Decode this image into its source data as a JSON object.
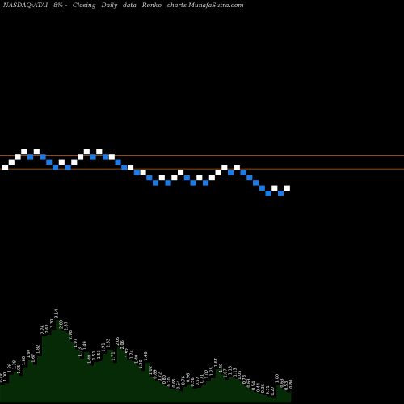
{
  "header": {
    "ticker": "NASDAQ:ATAI",
    "change": "8% -",
    "price_basis": "Closing",
    "frequency": "Daily",
    "data_word": "data",
    "chart_kind": "Renko",
    "site": "charts MunafaSutra.com"
  },
  "chart_data": [
    {
      "type": "renko",
      "title": "",
      "xlabel": "",
      "ylabel": "",
      "grid": false,
      "y_range_bricks": [
        -5,
        5
      ],
      "reference_lines_bricks": [
        2.3,
        -0.3
      ],
      "colors": {
        "up": "#ffffff",
        "down": "#1e7be6",
        "reference_line": "#c06a10"
      },
      "bricks": [
        {
          "d": "up",
          "lvl": 0
        },
        {
          "d": "up",
          "lvl": 1
        },
        {
          "d": "up",
          "lvl": 2
        },
        {
          "d": "up",
          "lvl": 3
        },
        {
          "d": "down",
          "lvl": 2
        },
        {
          "d": "up",
          "lvl": 3
        },
        {
          "d": "down",
          "lvl": 2
        },
        {
          "d": "down",
          "lvl": 1
        },
        {
          "d": "down",
          "lvl": 0
        },
        {
          "d": "up",
          "lvl": 1
        },
        {
          "d": "down",
          "lvl": 0
        },
        {
          "d": "up",
          "lvl": 1
        },
        {
          "d": "up",
          "lvl": 2
        },
        {
          "d": "up",
          "lvl": 3
        },
        {
          "d": "down",
          "lvl": 2
        },
        {
          "d": "up",
          "lvl": 3
        },
        {
          "d": "down",
          "lvl": 2
        },
        {
          "d": "up",
          "lvl": 2
        },
        {
          "d": "down",
          "lvl": 1
        },
        {
          "d": "down",
          "lvl": 0
        },
        {
          "d": "up",
          "lvl": 0
        },
        {
          "d": "down",
          "lvl": -1
        },
        {
          "d": "up",
          "lvl": -1
        },
        {
          "d": "down",
          "lvl": -2
        },
        {
          "d": "down",
          "lvl": -3
        },
        {
          "d": "up",
          "lvl": -2
        },
        {
          "d": "down",
          "lvl": -3
        },
        {
          "d": "up",
          "lvl": -2
        },
        {
          "d": "up",
          "lvl": -1
        },
        {
          "d": "down",
          "lvl": -2
        },
        {
          "d": "down",
          "lvl": -3
        },
        {
          "d": "up",
          "lvl": -2
        },
        {
          "d": "down",
          "lvl": -3
        },
        {
          "d": "up",
          "lvl": -2
        },
        {
          "d": "up",
          "lvl": -1
        },
        {
          "d": "up",
          "lvl": 0
        },
        {
          "d": "down",
          "lvl": -1
        },
        {
          "d": "up",
          "lvl": 0
        },
        {
          "d": "down",
          "lvl": -1
        },
        {
          "d": "down",
          "lvl": -2
        },
        {
          "d": "down",
          "lvl": -3
        },
        {
          "d": "down",
          "lvl": -4
        },
        {
          "d": "down",
          "lvl": -5
        },
        {
          "d": "up",
          "lvl": -4
        },
        {
          "d": "down",
          "lvl": -5
        },
        {
          "d": "up",
          "lvl": -4
        }
      ]
    },
    {
      "type": "area",
      "title": "",
      "colors": {
        "fill": "#062a06",
        "edge": "#0b3a0b"
      },
      "volume": [
        {
          "v": 0.98,
          "label": "0.99"
        },
        {
          "v": 1.05,
          "label": "1.00"
        },
        {
          "v": 1.55,
          "label": "1.26"
        },
        {
          "v": 1.72,
          "label": "1.38"
        },
        {
          "v": 1.47,
          "label": "1.05"
        },
        {
          "v": 1.95,
          "label": "1.60"
        },
        {
          "v": 2.35,
          "label": "1.97"
        },
        {
          "v": 2.1,
          "label": "1.67"
        },
        {
          "v": 2.6,
          "label": "1.82"
        },
        {
          "v": 3.7,
          "label": "2.76"
        },
        {
          "v": 3.75,
          "label": "2.62"
        },
        {
          "v": 4.05,
          "label": "3.30"
        },
        {
          "v": 4.6,
          "label": "3.14"
        },
        {
          "v": 4.0,
          "label": "2.89"
        },
        {
          "v": 3.9,
          "label": "2.87"
        },
        {
          "v": 3.4,
          "label": "2.98"
        },
        {
          "v": 2.95,
          "label": "1.97"
        },
        {
          "v": 2.45,
          "label": "1.73"
        },
        {
          "v": 2.8,
          "label": "1.49"
        },
        {
          "v": 2.05,
          "label": "1.48"
        },
        {
          "v": 2.25,
          "label": "1.51"
        },
        {
          "v": 2.3,
          "label": "1.53"
        },
        {
          "v": 2.7,
          "label": "1.91"
        },
        {
          "v": 2.95,
          "label": "2.63"
        },
        {
          "v": 2.2,
          "label": "1.71"
        },
        {
          "v": 3.05,
          "label": "2.05"
        },
        {
          "v": 2.85,
          "label": "2.06"
        },
        {
          "v": 2.4,
          "label": "1.52"
        },
        {
          "v": 2.3,
          "label": "1.74"
        },
        {
          "v": 2.05,
          "label": "1.40"
        },
        {
          "v": 1.75,
          "label": "1.20"
        },
        {
          "v": 2.2,
          "label": "1.46"
        },
        {
          "v": 1.4,
          "label": "1.02"
        },
        {
          "v": 1.2,
          "label": "0.89"
        },
        {
          "v": 1.05,
          "label": "0.72"
        },
        {
          "v": 0.9,
          "label": "0.80"
        },
        {
          "v": 0.75,
          "label": "0.70"
        },
        {
          "v": 0.7,
          "label": "0.65"
        },
        {
          "v": 0.6,
          "label": "0.54"
        },
        {
          "v": 0.85,
          "label": "0.76"
        },
        {
          "v": 1.0,
          "label": "0.96"
        },
        {
          "v": 0.75,
          "label": "0.56"
        },
        {
          "v": 0.8,
          "label": "0.57"
        },
        {
          "v": 0.95,
          "label": "0.71"
        },
        {
          "v": 1.2,
          "label": "1.02"
        },
        {
          "v": 1.35,
          "label": "1.25"
        },
        {
          "v": 1.85,
          "label": "1.67"
        },
        {
          "v": 1.55,
          "label": "1.40"
        },
        {
          "v": 1.25,
          "label": "1.07"
        },
        {
          "v": 1.4,
          "label": "1.18"
        },
        {
          "v": 1.3,
          "label": "1.13"
        },
        {
          "v": 1.15,
          "label": "1.05"
        },
        {
          "v": 0.9,
          "label": "0.78"
        },
        {
          "v": 0.7,
          "label": "0.63"
        },
        {
          "v": 0.55,
          "label": "0.54"
        },
        {
          "v": 0.45,
          "label": "0.44"
        },
        {
          "v": 0.4,
          "label": "0.36"
        },
        {
          "v": 0.3,
          "label": "0.31"
        },
        {
          "v": 0.25,
          "label": "0.27"
        },
        {
          "v": 0.95,
          "label": "1.00"
        },
        {
          "v": 0.7,
          "label": "0.63"
        },
        {
          "v": 0.55,
          "label": "0.53"
        },
        {
          "v": 0.65,
          "label": "0.80"
        }
      ]
    }
  ]
}
